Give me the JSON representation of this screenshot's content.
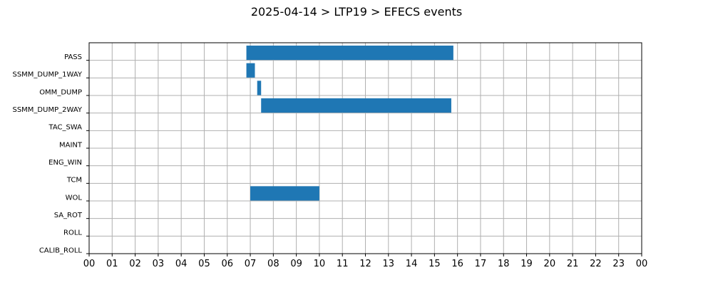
{
  "title": "2025-04-14 > LTP19 > EFECS events",
  "colors": {
    "bar": "#1f77b4",
    "grid": "#b0b0b0",
    "axis": "#000000"
  },
  "chart_data": {
    "type": "bar",
    "orientation": "horizontal",
    "title": "2025-04-14 > LTP19 > EFECS events",
    "xlabel": "",
    "ylabel": "",
    "xlim": [
      0,
      24
    ],
    "x_unit": "hour",
    "x_ticks": [
      "00",
      "01",
      "02",
      "03",
      "04",
      "05",
      "06",
      "07",
      "08",
      "09",
      "10",
      "11",
      "12",
      "13",
      "14",
      "15",
      "16",
      "17",
      "18",
      "19",
      "20",
      "21",
      "22",
      "23",
      "00"
    ],
    "grid": true,
    "categories": [
      "PASS",
      "SSMM_DUMP_1WAY",
      "OMM_DUMP",
      "SSMM_DUMP_2WAY",
      "TAC_SWA",
      "MAINT",
      "ENG_WIN",
      "TCM",
      "WOL",
      "SA_ROT",
      "ROLL",
      "CALIB_ROLL"
    ],
    "events": [
      {
        "category": "PASS",
        "start": 6.83,
        "end": 15.82
      },
      {
        "category": "SSMM_DUMP_1WAY",
        "start": 6.83,
        "end": 7.2
      },
      {
        "category": "OMM_DUMP",
        "start": 7.3,
        "end": 7.47
      },
      {
        "category": "SSMM_DUMP_2WAY",
        "start": 7.47,
        "end": 15.73
      },
      {
        "category": "WOL",
        "start": 7.0,
        "end": 10.0
      }
    ]
  }
}
